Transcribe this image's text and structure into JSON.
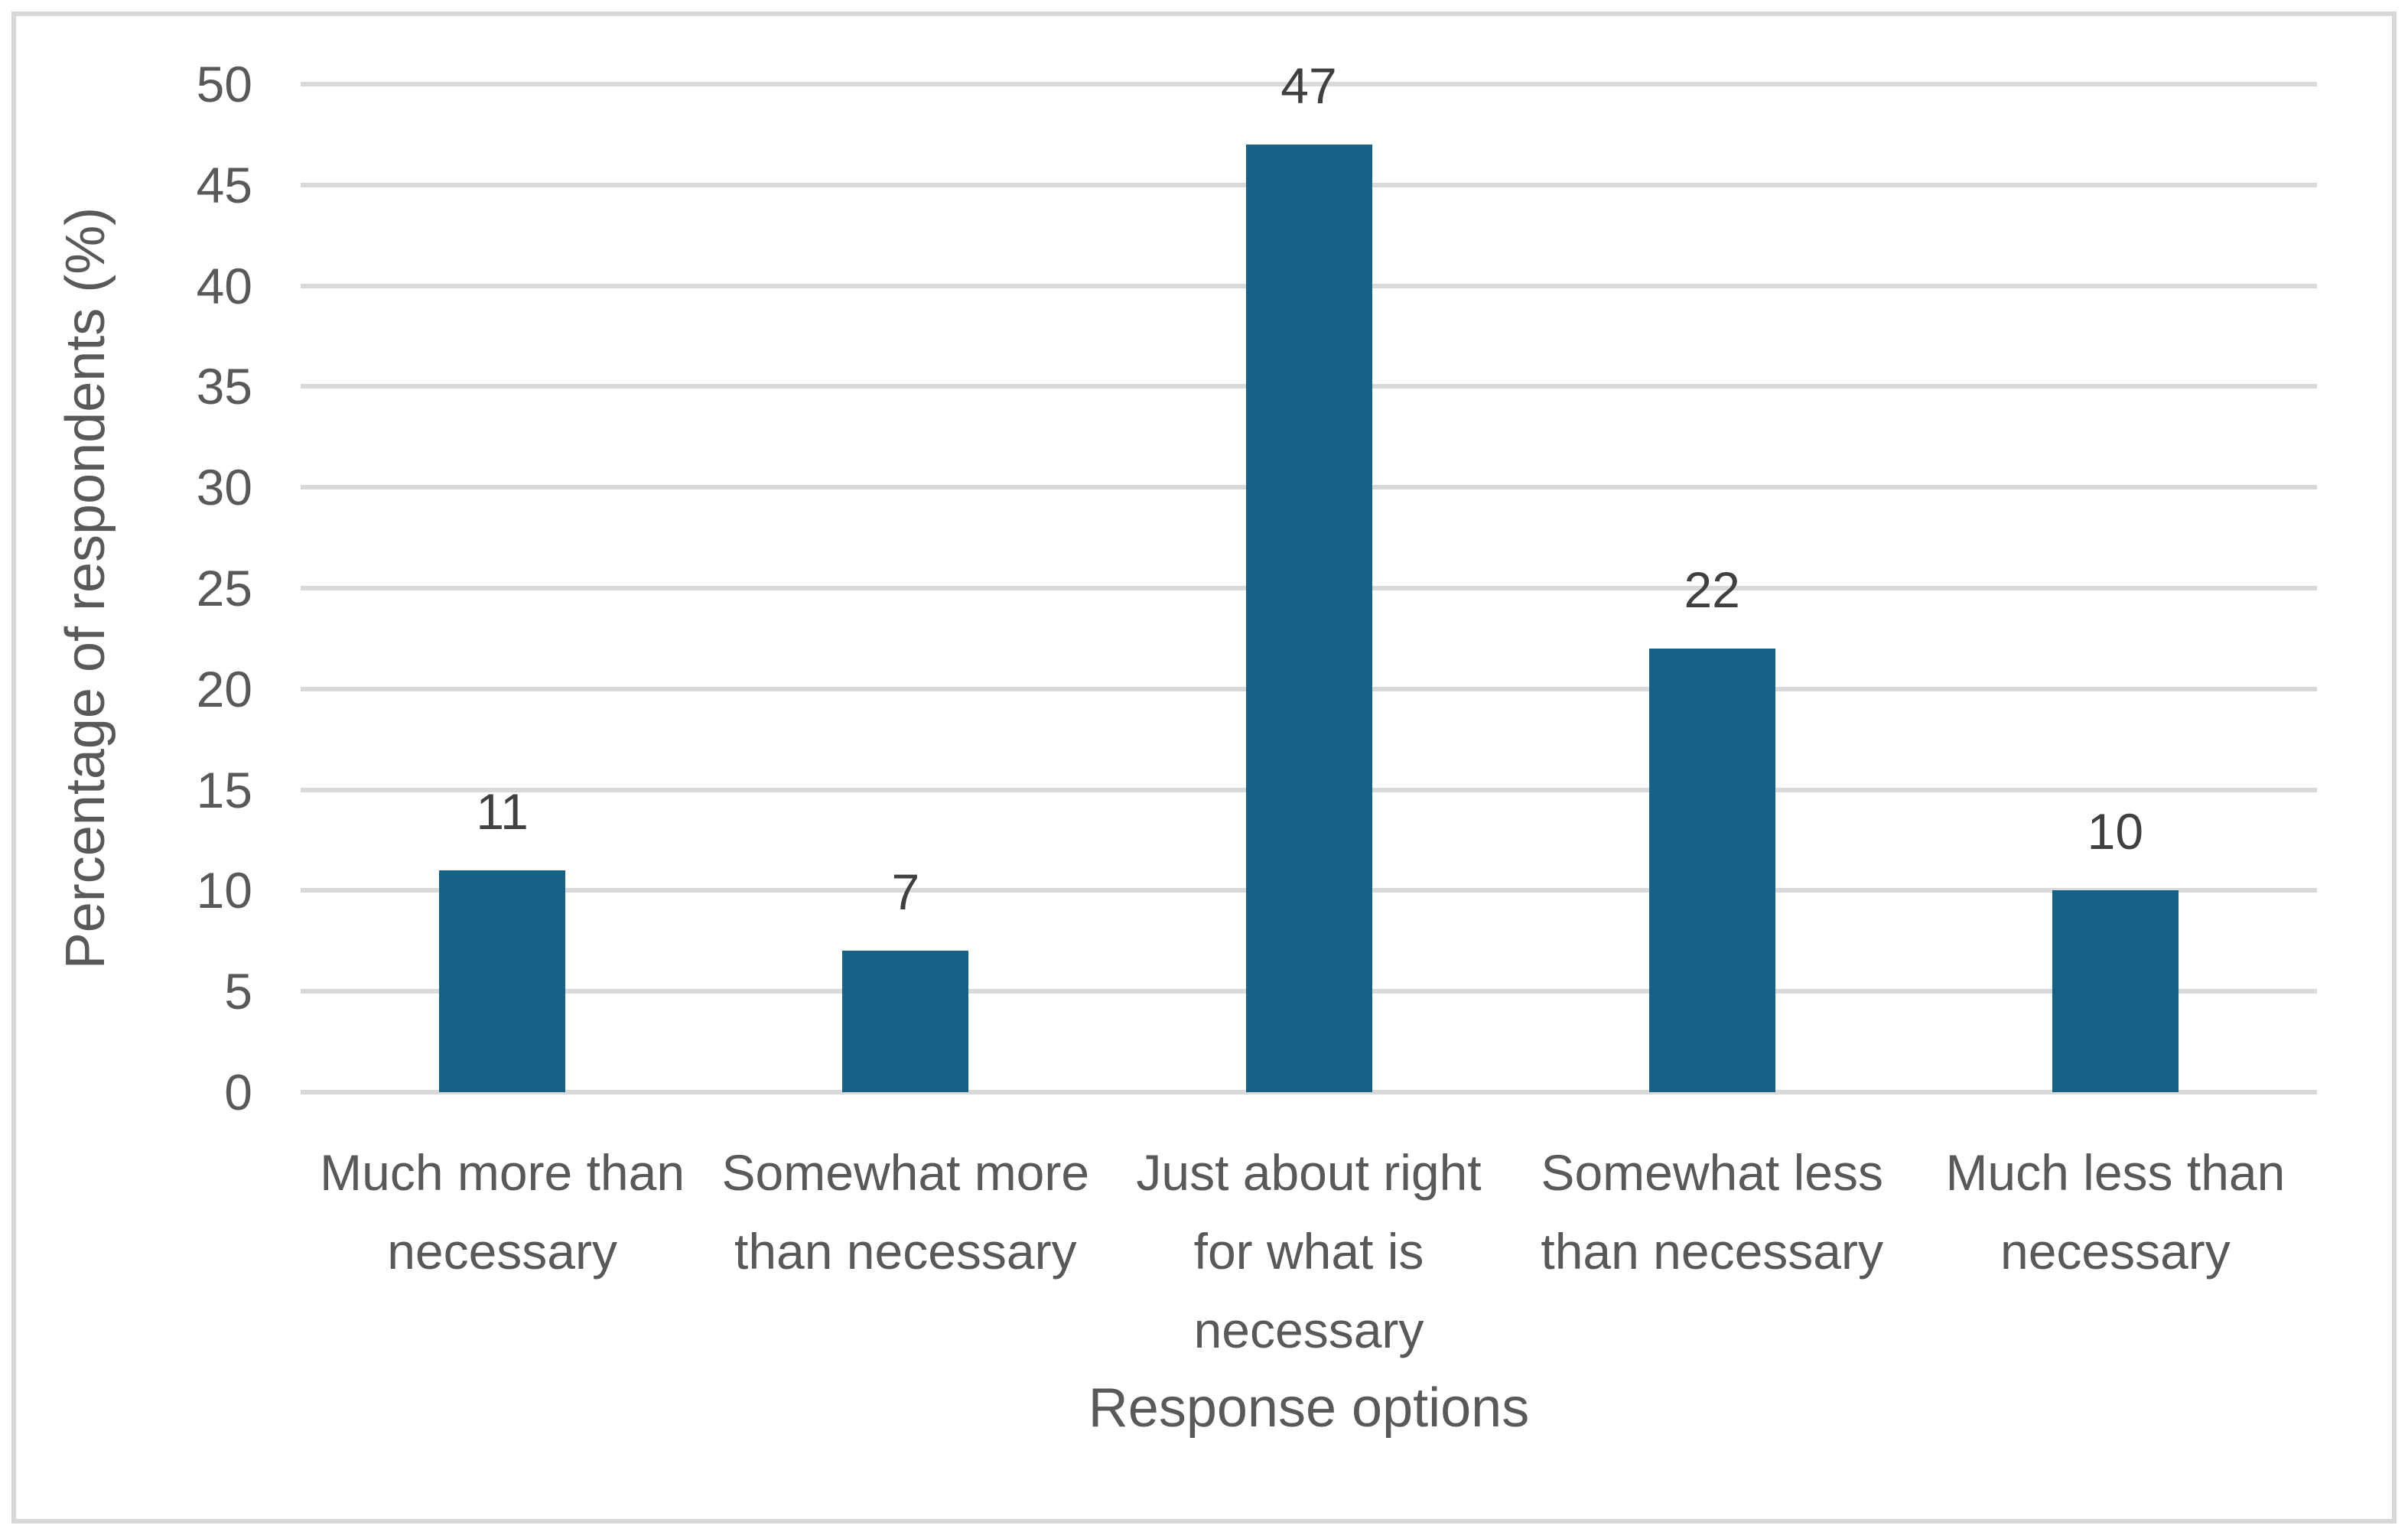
{
  "chart_data": {
    "type": "bar",
    "title": "",
    "categories": [
      "Much more than\nnecessary",
      "Somewhat more\nthan necessary",
      "Just about right\nfor what is\nnecessary",
      "Somewhat less\nthan necessary",
      "Much less than\nnecessary"
    ],
    "values": [
      11,
      7,
      47,
      22,
      10
    ],
    "data_labels": [
      "11",
      "7",
      "47",
      "22",
      "10"
    ],
    "xlabel": "Response options",
    "ylabel": "Percentage of respondents (%)",
    "ylim": [
      0,
      50
    ],
    "ytick_step": 5,
    "ytick_labels": [
      "0",
      "5",
      "10",
      "15",
      "20",
      "25",
      "30",
      "35",
      "40",
      "45",
      "50"
    ],
    "grid": "horizontal",
    "legend": "none",
    "colors": {
      "bar_fill": "#166186",
      "gridline": "#d9d9d9",
      "frame_border": "#d8d8d8",
      "tick_text": "#595959",
      "axis_title_text": "#595959",
      "data_label_text": "#404040",
      "background": "#ffffff"
    }
  }
}
